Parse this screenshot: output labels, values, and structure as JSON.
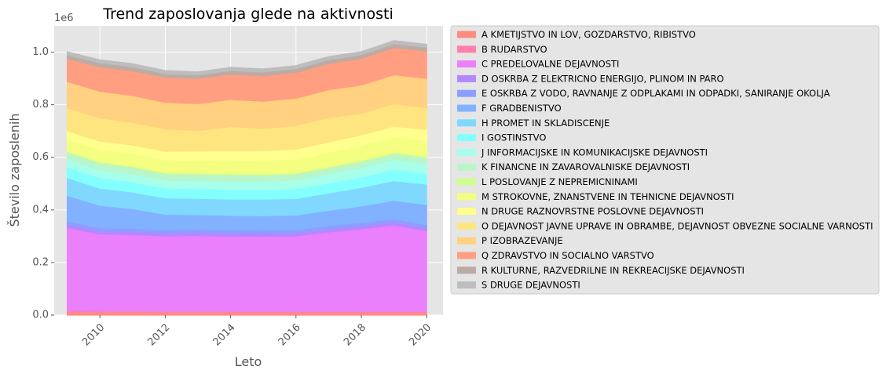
{
  "chart_data": {
    "type": "area",
    "stacked": true,
    "title": "Trend zaposlovanja glede na aktivnosti",
    "xlabel": "Leto",
    "ylabel": "Število zaposlenih",
    "y_offset_label": "1e6",
    "xlim": [
      2008.6,
      2020.5
    ],
    "ylim": [
      0,
      1.1
    ],
    "x_ticks": [
      2010,
      2012,
      2014,
      2016,
      2018,
      2020
    ],
    "y_ticks": [
      0.0,
      0.2,
      0.4,
      0.6,
      0.8,
      1.0
    ],
    "y_tick_labels": [
      "0.0",
      "0.2",
      "0.4",
      "0.6",
      "0.8",
      "1.0"
    ],
    "grid": true,
    "legend_position": "outside-right",
    "x": [
      2009,
      2010,
      2011,
      2012,
      2013,
      2014,
      2015,
      2016,
      2017,
      2018,
      2019,
      2020
    ],
    "series": [
      {
        "name": "A KMETIJSTVO IN LOV, GOZDARSTVO, RIBISTVO",
        "color": "#ff8a80",
        "values": [
          0.013,
          0.012,
          0.012,
          0.011,
          0.011,
          0.011,
          0.011,
          0.011,
          0.011,
          0.011,
          0.011,
          0.011
        ]
      },
      {
        "name": "B RUDARSTVO",
        "color": "#ff80ab",
        "values": [
          0.004,
          0.004,
          0.004,
          0.004,
          0.004,
          0.004,
          0.003,
          0.003,
          0.003,
          0.003,
          0.003,
          0.003
        ]
      },
      {
        "name": "C PREDELOVALNE DEJAVNOSTI",
        "color": "#ea80fc",
        "values": [
          0.316,
          0.292,
          0.29,
          0.286,
          0.287,
          0.285,
          0.285,
          0.287,
          0.302,
          0.314,
          0.328,
          0.306
        ]
      },
      {
        "name": "D OSKRBA Z ELEKTRICNO ENERGIJO, PLINOM IN PARO",
        "color": "#b388ff",
        "values": [
          0.012,
          0.012,
          0.012,
          0.012,
          0.012,
          0.012,
          0.012,
          0.012,
          0.012,
          0.012,
          0.012,
          0.012
        ]
      },
      {
        "name": "E OSKRBA Z VODO, RAVNANJE Z ODPLAKAMI IN ODPADKI, SANIRANJE OKOLJA",
        "color": "#8c9eff",
        "values": [
          0.012,
          0.012,
          0.012,
          0.012,
          0.012,
          0.012,
          0.012,
          0.012,
          0.012,
          0.012,
          0.012,
          0.012
        ]
      },
      {
        "name": "F GRADBENISTVO",
        "color": "#82b1ff",
        "values": [
          0.098,
          0.085,
          0.075,
          0.058,
          0.056,
          0.055,
          0.055,
          0.055,
          0.058,
          0.063,
          0.07,
          0.076
        ]
      },
      {
        "name": "H PROMET IN SKLADISCENJE",
        "color": "#80d8ff",
        "values": [
          0.068,
          0.065,
          0.063,
          0.062,
          0.062,
          0.062,
          0.063,
          0.063,
          0.066,
          0.07,
          0.075,
          0.078
        ]
      },
      {
        "name": "I GOSTINSTVO",
        "color": "#84ffff",
        "values": [
          0.04,
          0.04,
          0.038,
          0.037,
          0.037,
          0.037,
          0.036,
          0.037,
          0.039,
          0.041,
          0.043,
          0.04
        ]
      },
      {
        "name": "J INFORMACIJSKE IN KOMUNIKACIJSKE DEJAVNOSTI",
        "color": "#a7ffeb",
        "values": [
          0.03,
          0.03,
          0.03,
          0.03,
          0.03,
          0.031,
          0.032,
          0.033,
          0.034,
          0.035,
          0.037,
          0.038
        ]
      },
      {
        "name": "K FINANCNE IN ZAVAROVALNISKE DEJAVNOSTI",
        "color": "#b9f6ca",
        "values": [
          0.026,
          0.026,
          0.026,
          0.025,
          0.024,
          0.024,
          0.023,
          0.023,
          0.022,
          0.022,
          0.022,
          0.022
        ]
      },
      {
        "name": "L POSLOVANJE Z NEPREMICNINAMI",
        "color": "#ccff90",
        "values": [
          0.005,
          0.005,
          0.005,
          0.005,
          0.005,
          0.005,
          0.005,
          0.005,
          0.006,
          0.006,
          0.006,
          0.006
        ]
      },
      {
        "name": "M STROKOVNE, ZNANSTVENE IN TEHNICNE DEJAVNOSTI",
        "color": "#f4ff81",
        "values": [
          0.045,
          0.047,
          0.048,
          0.048,
          0.049,
          0.05,
          0.051,
          0.052,
          0.054,
          0.056,
          0.058,
          0.06
        ]
      },
      {
        "name": "N DRUGE RAZNOVRSTNE POSLOVNE DEJAVNOSTI",
        "color": "#ffff8d",
        "values": [
          0.032,
          0.031,
          0.032,
          0.033,
          0.035,
          0.037,
          0.037,
          0.038,
          0.039,
          0.04,
          0.041,
          0.041
        ]
      },
      {
        "name": "O DEJAVNOST JAVNE UPRAVE IN OBRAMBE, DEJAVNOST OBVEZNE SOCIALNE VARNOSTI",
        "color": "#ffe57f",
        "values": [
          0.087,
          0.088,
          0.086,
          0.085,
          0.077,
          0.092,
          0.085,
          0.09,
          0.093,
          0.082,
          0.086,
          0.083
        ]
      },
      {
        "name": "P IZOBRAZEVANJE",
        "color": "#ffd180",
        "values": [
          0.1,
          0.102,
          0.102,
          0.101,
          0.103,
          0.103,
          0.103,
          0.104,
          0.106,
          0.108,
          0.11,
          0.112
        ]
      },
      {
        "name": "Q ZDRAVSTVO IN SOCIALNO VARSTVO",
        "color": "#ff9e80",
        "values": [
          0.087,
          0.093,
          0.094,
          0.095,
          0.096,
          0.096,
          0.097,
          0.098,
          0.1,
          0.101,
          0.103,
          0.105
        ]
      },
      {
        "name": "R KULTURNE, RAZVEDRILNE IN REKREACIJSKE DEJAVNOSTI",
        "color": "#bcaaa4",
        "values": [
          0.015,
          0.015,
          0.015,
          0.014,
          0.013,
          0.014,
          0.014,
          0.014,
          0.014,
          0.014,
          0.015,
          0.014
        ]
      },
      {
        "name": "S DRUGE DEJAVNOSTI",
        "color": "#bdbdbd",
        "values": [
          0.012,
          0.012,
          0.012,
          0.012,
          0.012,
          0.012,
          0.012,
          0.012,
          0.012,
          0.012,
          0.012,
          0.011
        ]
      }
    ]
  }
}
